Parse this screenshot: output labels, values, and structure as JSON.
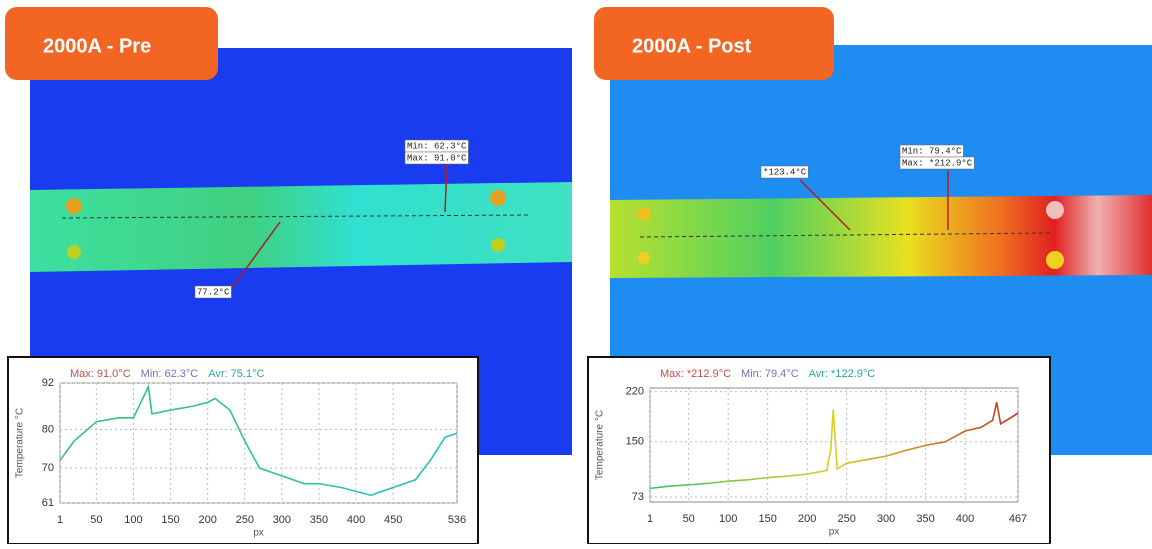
{
  "chart_data": [
    {
      "type": "line",
      "title": "2000A - Pre",
      "annotations": [
        "Min: 62.3°C",
        "Max: 91.0°C",
        "77.2°C"
      ],
      "stats": [
        {
          "text": "Max: 91.0°C",
          "color": "#c0504d"
        },
        {
          "text": "Min: 62.3°C",
          "color": "#7b6fc0"
        },
        {
          "text": "Avr: 75.1°C",
          "color": "#2aa7a0"
        }
      ],
      "ylabel": "Temperature °C",
      "xlabel": "px",
      "x": [
        1,
        20,
        50,
        80,
        100,
        120,
        125,
        150,
        180,
        200,
        210,
        230,
        250,
        270,
        300,
        330,
        350,
        380,
        400,
        420,
        450,
        480,
        500,
        520,
        536
      ],
      "series": [
        {
          "gradient": [
            "#3cc070",
            "#24c4c0"
          ],
          "values": [
            72,
            77,
            82,
            83,
            83,
            91,
            84,
            85,
            86,
            87,
            88,
            85,
            77,
            70,
            68,
            66,
            66,
            65,
            64,
            63,
            65,
            67,
            72,
            78,
            79
          ]
        }
      ],
      "xlim": [
        1,
        536
      ],
      "ylim": [
        61,
        92
      ],
      "xticks": [
        1,
        50,
        100,
        150,
        200,
        250,
        300,
        350,
        400,
        450,
        536
      ],
      "yticks": [
        61,
        70,
        80,
        92
      ],
      "grid": true
    },
    {
      "type": "line",
      "title": "2000A - Post",
      "annotations": [
        "*123.4°C",
        "Min: 79.4°C",
        "Max: *212.9°C"
      ],
      "stats": [
        {
          "text": "Max: *212.9°C",
          "color": "#c0504d"
        },
        {
          "text": "Min: 79.4°C",
          "color": "#7b6fc0"
        },
        {
          "text": "Avr: *122.9°C",
          "color": "#2aa7a0"
        }
      ],
      "ylabel": "Temperature °C",
      "xlabel": "px",
      "x": [
        1,
        25,
        50,
        75,
        100,
        125,
        150,
        175,
        200,
        225,
        230,
        233,
        238,
        250,
        275,
        300,
        325,
        350,
        375,
        400,
        420,
        435,
        440,
        445,
        460,
        467
      ],
      "series": [
        {
          "gradient": [
            "#3cc070",
            "#d8d020",
            "#c03020"
          ],
          "values": [
            85,
            88,
            90,
            92,
            95,
            97,
            100,
            102,
            105,
            110,
            140,
            195,
            112,
            120,
            125,
            130,
            138,
            145,
            150,
            165,
            170,
            180,
            205,
            175,
            185,
            190
          ]
        }
      ],
      "xlim": [
        1,
        467
      ],
      "ylim": [
        66,
        225
      ],
      "xticks": [
        1,
        50,
        100,
        150,
        200,
        250,
        300,
        350,
        400,
        467
      ],
      "yticks": [
        73,
        150,
        220
      ],
      "grid": true
    }
  ]
}
